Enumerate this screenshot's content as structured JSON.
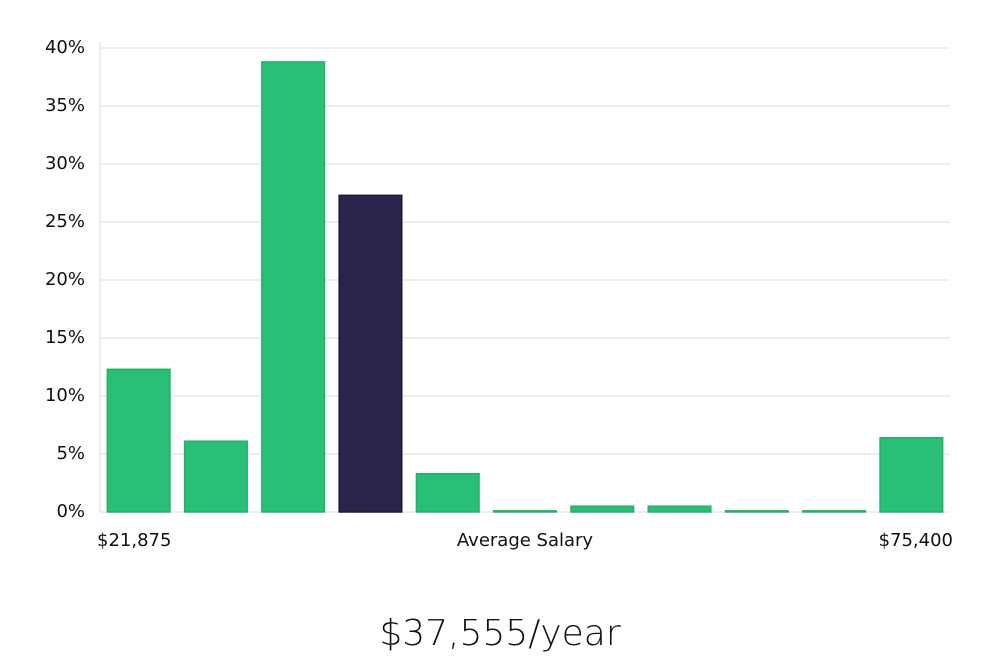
{
  "chart_data": {
    "type": "bar",
    "categories": [
      null,
      null,
      null,
      null,
      null,
      null,
      null,
      null,
      null,
      null,
      null
    ],
    "values": [
      12.3,
      6.1,
      38.8,
      27.3,
      3.3,
      0.1,
      0.5,
      0.5,
      0.1,
      0.1,
      6.4
    ],
    "colors": [
      "#2abf77",
      "#2abf77",
      "#2abf77",
      "#29254a",
      "#2abf77",
      "#2abf77",
      "#2abf77",
      "#2abf77",
      "#2abf77",
      "#2abf77",
      "#2abf77"
    ],
    "ylim": [
      0,
      40
    ],
    "yticks": [
      {
        "value": 0,
        "label": "0%"
      },
      {
        "value": 5,
        "label": "5%"
      },
      {
        "value": 10,
        "label": "10%"
      },
      {
        "value": 15,
        "label": "15%"
      },
      {
        "value": 20,
        "label": "20%"
      },
      {
        "value": 25,
        "label": "25%"
      },
      {
        "value": 30,
        "label": "30%"
      },
      {
        "value": 35,
        "label": "35%"
      },
      {
        "value": 40,
        "label": "40%"
      }
    ],
    "grid": true,
    "x_start_label": "$21,875",
    "x_end_label": "$75,400",
    "xlabel": "Average Salary",
    "summary": "$37,555/year"
  }
}
